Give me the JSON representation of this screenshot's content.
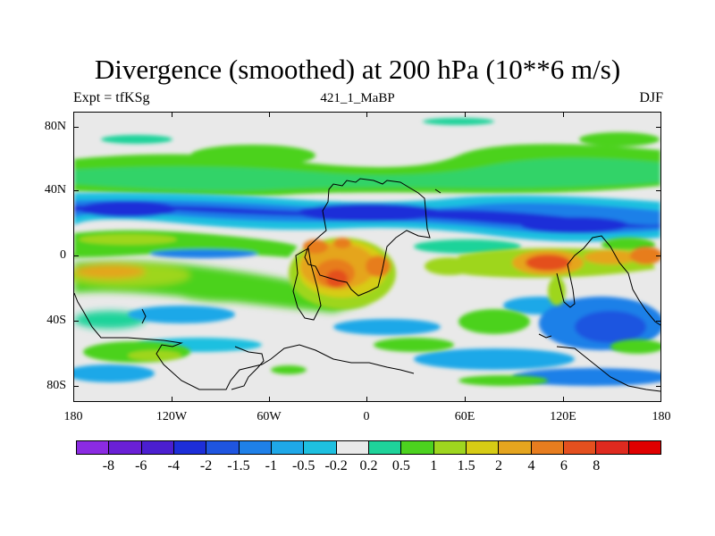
{
  "title": "Divergence (smoothed) at 200 hPa (10**6 m/s)",
  "subtitle_left": "Expt = tfKSg",
  "subtitle_center": "421_1_MaBP",
  "subtitle_right": "DJF",
  "map": {
    "lat_labels": [
      "80N",
      "40N",
      "0",
      "40S",
      "80S"
    ],
    "lon_labels": [
      "180",
      "120W",
      "60W",
      "0",
      "60E",
      "120E",
      "180"
    ]
  },
  "colorbar": {
    "colors": [
      "#8b2be2",
      "#6a20d6",
      "#4b1fd0",
      "#1d2ed8",
      "#1f55e0",
      "#1f80e8",
      "#1fa8e8",
      "#1ec0e0",
      "#e9e9e9",
      "#1fd39a",
      "#4cd21f",
      "#9ed61f",
      "#d7cc15",
      "#e5a51f",
      "#e77d1f",
      "#e4501f",
      "#df2a1f",
      "#e00000"
    ],
    "labels": [
      "-8",
      "-6",
      "-4",
      "-2",
      "-1.5",
      "-1",
      "-0.5",
      "-0.2",
      "0.2",
      "0.5",
      "1",
      "1.5",
      "2",
      "4",
      "6",
      "8"
    ]
  }
}
